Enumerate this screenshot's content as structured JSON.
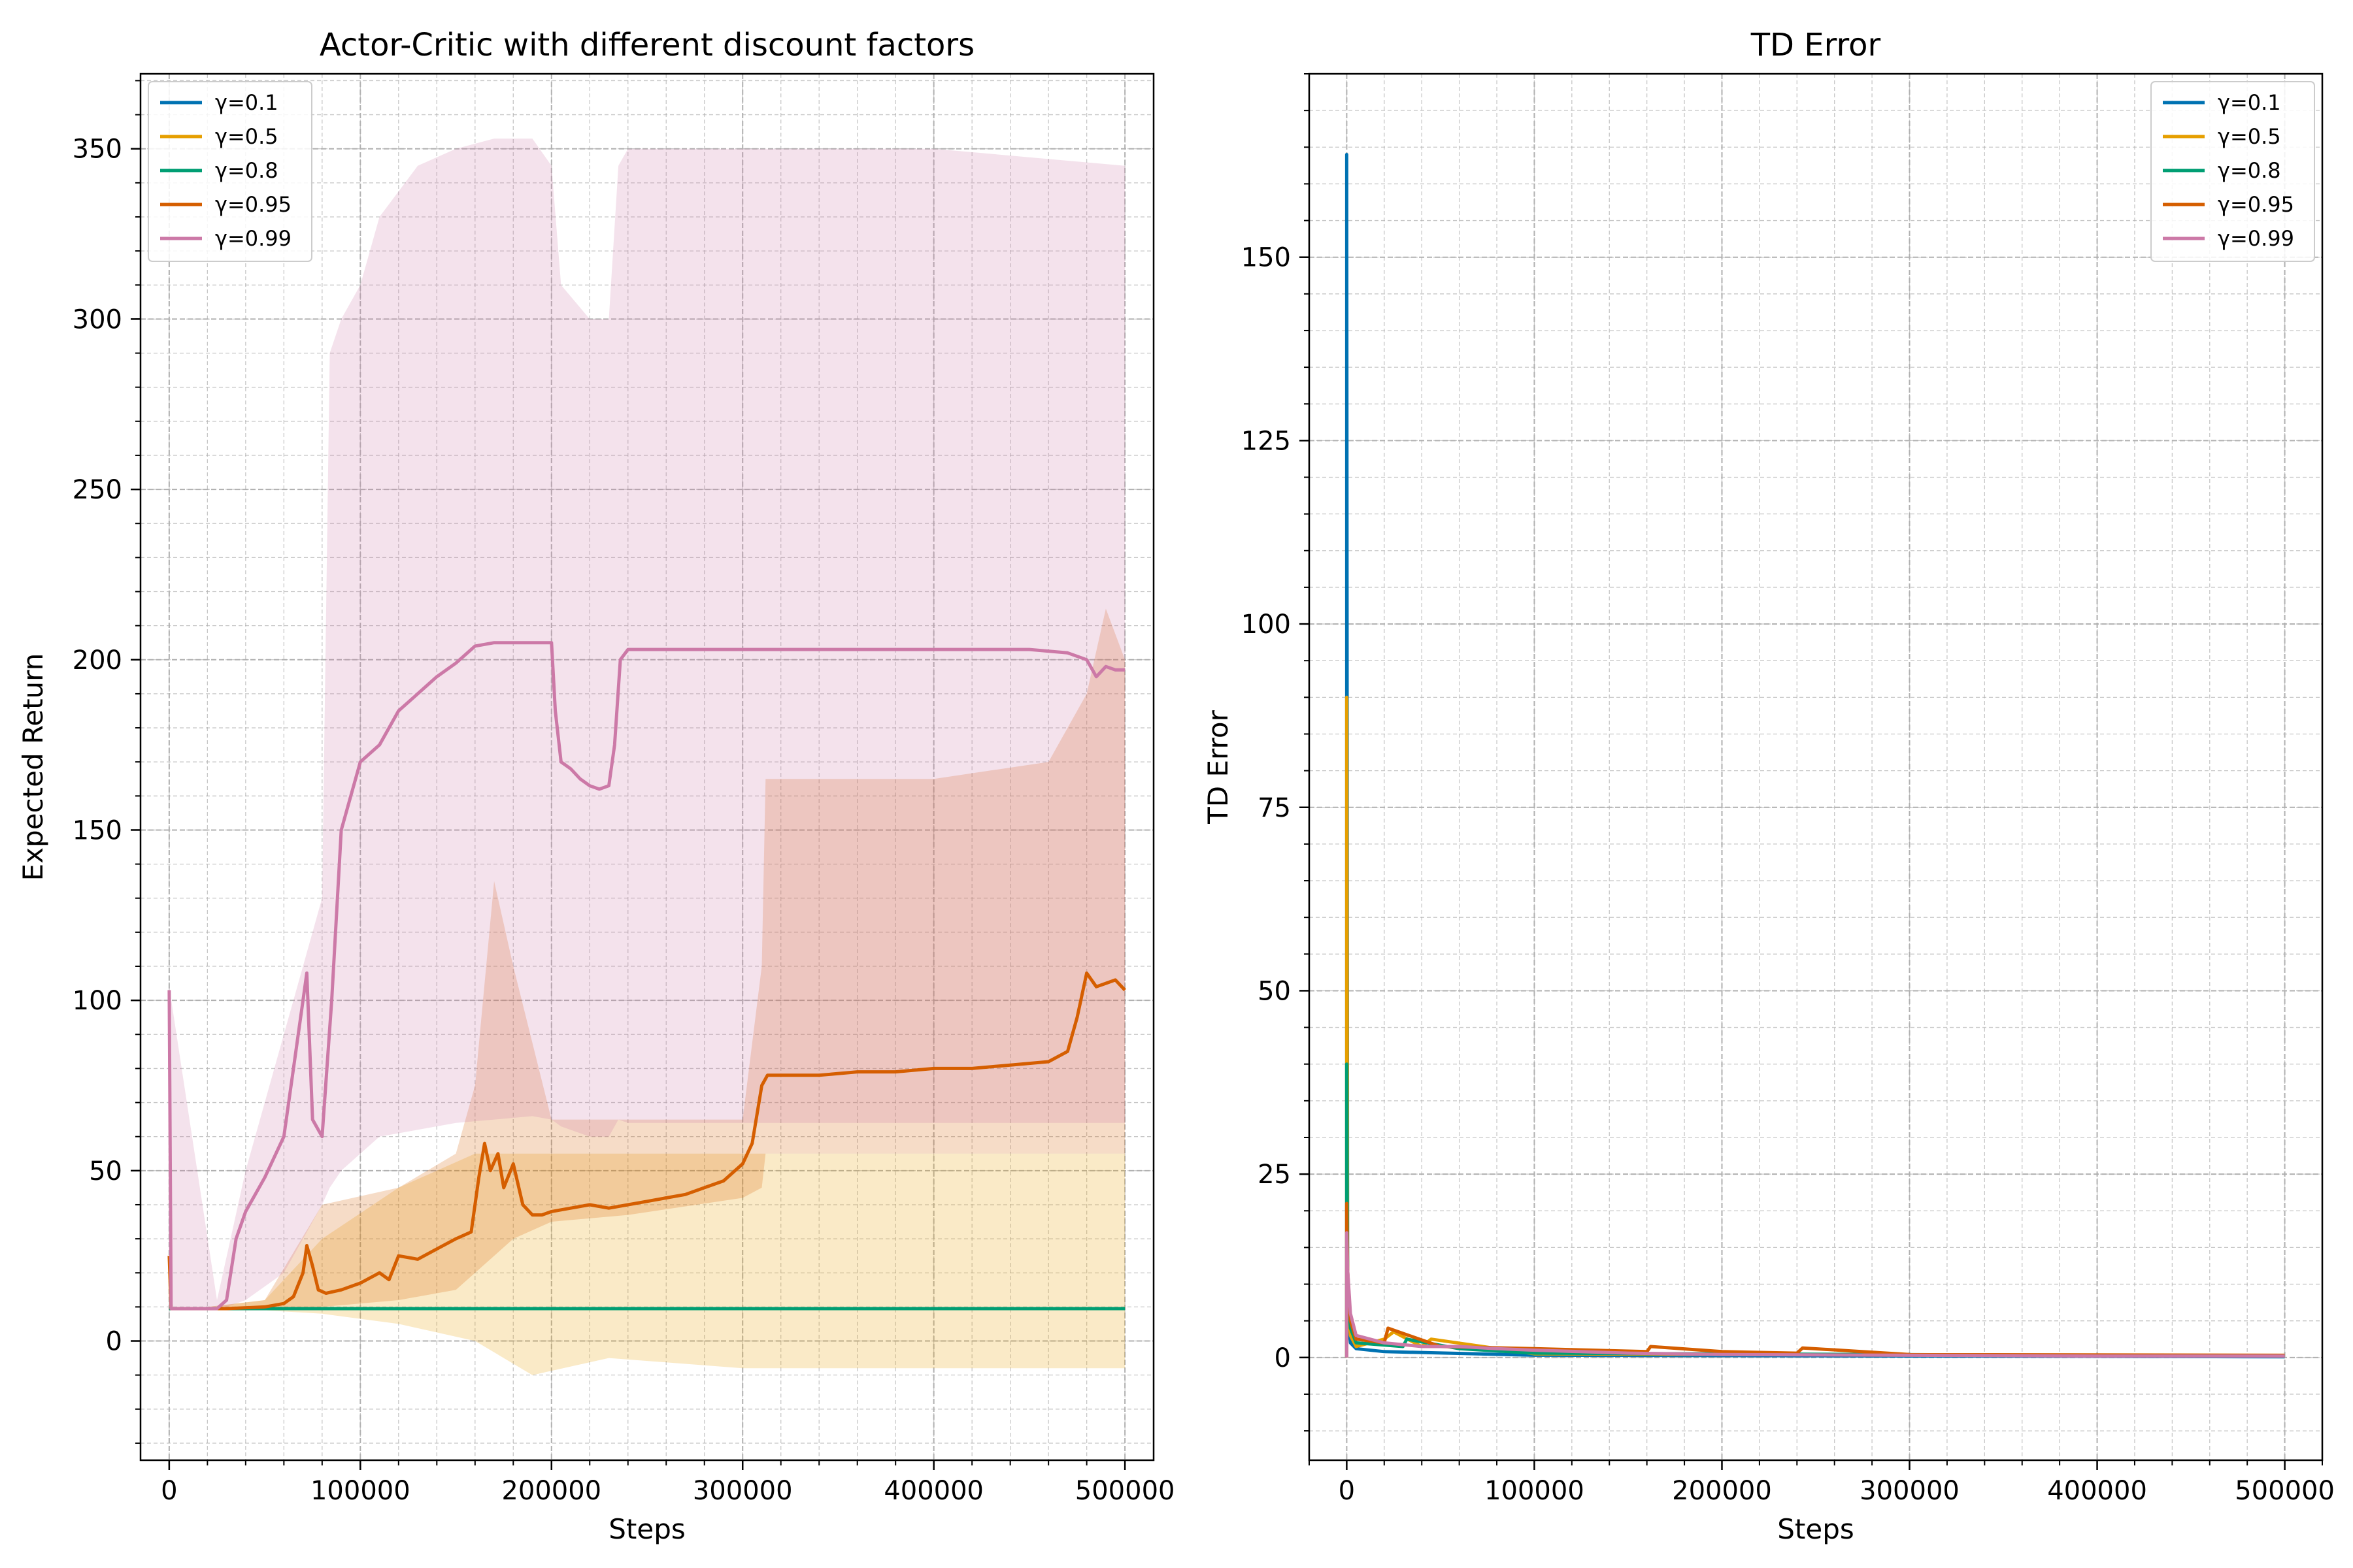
{
  "colors": {
    "g01": "#0072B2",
    "g05": "#E69F00",
    "g08": "#009E73",
    "g095": "#D55E00",
    "g099": "#CC79A7",
    "grid": "#b0b0b0",
    "axis": "#000000"
  },
  "chart_data": [
    {
      "type": "line",
      "title": "Actor-Critic with different discount factors",
      "xlabel": "Steps",
      "ylabel": "Expected Return",
      "xlim": [
        -15000,
        515000
      ],
      "ylim": [
        -35,
        372
      ],
      "xticks": [
        0,
        100000,
        200000,
        300000,
        400000,
        500000
      ],
      "xtick_labels": [
        "0",
        "100000",
        "200000",
        "300000",
        "400000",
        "500000"
      ],
      "yticks": [
        0,
        50,
        100,
        150,
        200,
        250,
        300,
        350
      ],
      "ytick_labels": [
        "0",
        "50",
        "100",
        "150",
        "200",
        "250",
        "300",
        "350"
      ],
      "grid": true,
      "legend": "upper left",
      "series": [
        {
          "name": "γ=0.1",
          "color_key": "g01",
          "x": [
            0,
            500000
          ],
          "y": [
            9.5,
            9.5
          ]
        },
        {
          "name": "γ=0.5",
          "color_key": "g05",
          "x": [
            0,
            500000
          ],
          "y": [
            9.5,
            9.5
          ],
          "band": {
            "x": [
              0,
              20000,
              50000,
              80000,
              120000,
              160000,
              190000,
              230000,
              300000,
              400000,
              500000
            ],
            "lower": [
              9,
              9,
              9,
              8,
              5,
              0,
              -10,
              -5,
              -8,
              -8,
              -8
            ],
            "upper": [
              10,
              10,
              12,
              30,
              45,
              55,
              55,
              55,
              55,
              55,
              55
            ]
          }
        },
        {
          "name": "γ=0.8",
          "color_key": "g08",
          "x": [
            0,
            500000
          ],
          "y": [
            9.5,
            9.5
          ]
        },
        {
          "name": "γ=0.95",
          "color_key": "g095",
          "x": [
            0,
            1000,
            2000,
            10000,
            30000,
            50000,
            60000,
            65000,
            70000,
            72000,
            75000,
            78000,
            82000,
            90000,
            100000,
            110000,
            115000,
            120000,
            130000,
            140000,
            150000,
            158000,
            162000,
            165000,
            168000,
            172000,
            175000,
            180000,
            185000,
            190000,
            195000,
            200000,
            210000,
            220000,
            230000,
            240000,
            250000,
            260000,
            270000,
            280000,
            290000,
            300000,
            305000,
            310000,
            313000,
            320000,
            340000,
            360000,
            380000,
            400000,
            420000,
            440000,
            460000,
            470000,
            475000,
            480000,
            485000,
            490000,
            495000,
            500000
          ],
          "y": [
            25,
            9.5,
            9.5,
            9.5,
            9.5,
            10,
            11,
            13,
            20,
            28,
            22,
            15,
            14,
            15,
            17,
            20,
            18,
            25,
            24,
            27,
            30,
            32,
            48,
            58,
            50,
            55,
            45,
            52,
            40,
            37,
            37,
            38,
            39,
            40,
            39,
            40,
            41,
            42,
            43,
            45,
            47,
            52,
            58,
            75,
            78,
            78,
            78,
            79,
            79,
            80,
            80,
            81,
            82,
            85,
            95,
            108,
            104,
            105,
            106,
            103
          ],
          "band": {
            "x": [
              0,
              20000,
              50000,
              80000,
              120000,
              150000,
              160000,
              170000,
              180000,
              200000,
              240000,
              300000,
              310000,
              312000,
              350000,
              400000,
              460000,
              480000,
              490000,
              500000
            ],
            "lower": [
              9,
              9,
              9,
              10,
              12,
              15,
              20,
              25,
              30,
              35,
              37,
              42,
              45,
              55,
              55,
              55,
              55,
              55,
              55,
              55
            ],
            "upper": [
              10,
              10,
              12,
              40,
              45,
              55,
              75,
              135,
              110,
              65,
              65,
              65,
              110,
              165,
              165,
              165,
              170,
              190,
              215,
              200
            ]
          }
        },
        {
          "name": "γ=0.99",
          "color_key": "g099",
          "x": [
            0,
            1000,
            2000,
            10000,
            25000,
            30000,
            35000,
            40000,
            50000,
            60000,
            65000,
            70000,
            72000,
            75000,
            80000,
            85000,
            90000,
            95000,
            100000,
            110000,
            120000,
            130000,
            140000,
            150000,
            160000,
            170000,
            180000,
            190000,
            200000,
            202000,
            205000,
            210000,
            215000,
            220000,
            225000,
            230000,
            233000,
            236000,
            240000,
            250000,
            300000,
            350000,
            400000,
            450000,
            470000,
            480000,
            485000,
            490000,
            495000,
            500000
          ],
          "y": [
            103,
            9.5,
            9.5,
            9.5,
            9.5,
            12,
            30,
            38,
            48,
            60,
            80,
            100,
            108,
            65,
            60,
            100,
            150,
            160,
            170,
            175,
            185,
            190,
            195,
            199,
            204,
            205,
            205,
            205,
            205,
            185,
            170,
            168,
            165,
            163,
            162,
            163,
            175,
            200,
            203,
            203,
            203,
            203,
            203,
            203,
            202,
            200,
            195,
            198,
            197,
            197
          ],
          "band": {
            "x": [
              0,
              25000,
              40000,
              60000,
              80000,
              84000,
              90000,
              100000,
              110000,
              130000,
              150000,
              170000,
              190000,
              200000,
              205000,
              220000,
              230000,
              235000,
              240000,
              300000,
              400000,
              500000
            ],
            "lower": [
              9,
              9,
              12,
              20,
              40,
              45,
              50,
              55,
              60,
              62,
              64,
              65,
              66,
              65,
              63,
              60,
              60,
              65,
              64,
              64,
              64,
              64
            ],
            "upper": [
              104,
              12,
              50,
              90,
              130,
              290,
              300,
              310,
              330,
              345,
              350,
              353,
              353,
              345,
              310,
              300,
              300,
              345,
              350,
              350,
              350,
              345
            ]
          }
        }
      ]
    },
    {
      "type": "line",
      "title": "TD Error",
      "xlabel": "Steps",
      "ylabel": "TD Error",
      "xlim": [
        -20000,
        520000
      ],
      "ylim": [
        -14,
        175
      ],
      "xticks": [
        0,
        100000,
        200000,
        300000,
        400000,
        500000
      ],
      "xtick_labels": [
        "0",
        "100000",
        "200000",
        "300000",
        "400000",
        "500000"
      ],
      "yticks": [
        0,
        25,
        50,
        75,
        100,
        125,
        150
      ],
      "ytick_labels": [
        "0",
        "25",
        "50",
        "75",
        "100",
        "125",
        "150"
      ],
      "grid": true,
      "legend": "upper right",
      "series": [
        {
          "name": "γ=0.1",
          "color_key": "g01",
          "x": [
            0,
            0,
            500,
            2000,
            5000,
            20000,
            100000,
            500000
          ],
          "y": [
            0,
            164,
            6,
            2,
            1.2,
            0.8,
            0.3,
            0.1
          ]
        },
        {
          "name": "γ=0.5",
          "color_key": "g05",
          "x": [
            0,
            0,
            500,
            2000,
            5000,
            20000,
            25000,
            40000,
            45000,
            100000,
            500000
          ],
          "y": [
            0,
            90,
            8,
            3,
            1.5,
            2.5,
            3.5,
            1.5,
            2.5,
            0.5,
            0.2
          ]
        },
        {
          "name": "γ=0.8",
          "color_key": "g08",
          "x": [
            0,
            0,
            500,
            2000,
            5000,
            30000,
            32000,
            60000,
            100000,
            500000
          ],
          "y": [
            0,
            40,
            10,
            4,
            2,
            1.5,
            2.5,
            1.2,
            0.6,
            0.2
          ]
        },
        {
          "name": "γ=0.95",
          "color_key": "g095",
          "x": [
            0,
            0,
            500,
            2000,
            5000,
            20000,
            22000,
            50000,
            100000,
            160000,
            162000,
            200000,
            240000,
            243000,
            300000,
            500000
          ],
          "y": [
            0,
            21,
            12,
            5,
            2.5,
            2,
            4,
            1.5,
            1.2,
            0.8,
            1.5,
            0.8,
            0.6,
            1.3,
            0.4,
            0.3
          ]
        },
        {
          "name": "γ=0.99",
          "color_key": "g099",
          "x": [
            0,
            0,
            500,
            2000,
            5000,
            20000,
            40000,
            60000,
            80000,
            100000,
            150000,
            200000,
            300000,
            400000,
            500000
          ],
          "y": [
            0,
            17,
            12,
            6,
            3,
            2,
            1.5,
            1.5,
            1.2,
            1,
            0.6,
            0.4,
            0.3,
            0.2,
            0.2
          ]
        }
      ]
    }
  ]
}
